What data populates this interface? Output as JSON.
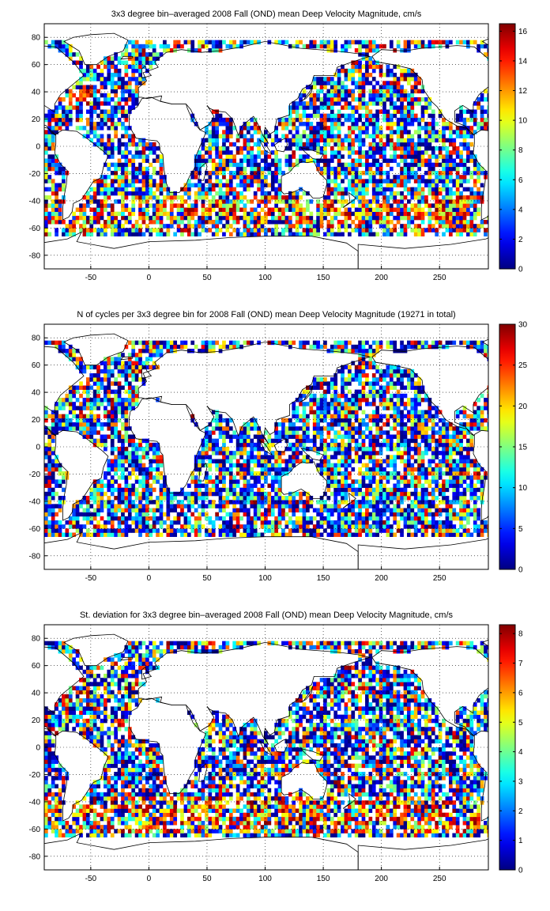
{
  "chart_data": [
    {
      "type": "heatmap",
      "title": "3x3 degree bin–averaged 2008 Fall (OND) mean Deep Velocity Magnitude, cm/s",
      "xlabel": "",
      "ylabel": "",
      "xlim": [
        -90,
        292
      ],
      "ylim": [
        -90,
        90
      ],
      "xticks": [
        "-50",
        "0",
        "50",
        "100",
        "150",
        "200",
        "250"
      ],
      "yticks": [
        "80",
        "60",
        "40",
        "20",
        "0",
        "-20",
        "-40",
        "-60",
        "-80"
      ],
      "colorbar": {
        "range": [
          0,
          16.5
        ],
        "ticks": [
          "0",
          "2",
          "4",
          "6",
          "8",
          "10",
          "12",
          "14",
          "16"
        ]
      },
      "grid": true,
      "colormap": "jet",
      "bin_size_deg": 3
    },
    {
      "type": "heatmap",
      "title": "N of cycles per 3x3 degree bin for 2008 Fall (OND) mean Deep Velocity Magnitude (19271 in total)",
      "xlabel": "",
      "ylabel": "",
      "xlim": [
        -90,
        292
      ],
      "ylim": [
        -90,
        90
      ],
      "xticks": [
        "-50",
        "0",
        "50",
        "100",
        "150",
        "200",
        "250"
      ],
      "yticks": [
        "80",
        "60",
        "40",
        "20",
        "0",
        "-20",
        "-40",
        "-60",
        "-80"
      ],
      "colorbar": {
        "range": [
          0,
          30
        ],
        "ticks": [
          "0",
          "5",
          "10",
          "15",
          "20",
          "25",
          "30"
        ]
      },
      "grid": true,
      "colormap": "jet",
      "bin_size_deg": 3
    },
    {
      "type": "heatmap",
      "title": "St. deviation for 3x3 degree bin–averaged 2008 Fall (OND) mean Deep Velocity Magnitude, cm/s",
      "xlabel": "",
      "ylabel": "",
      "xlim": [
        -90,
        292
      ],
      "ylim": [
        -90,
        90
      ],
      "xticks": [
        "-50",
        "0",
        "50",
        "100",
        "150",
        "200",
        "250"
      ],
      "yticks": [
        "80",
        "60",
        "40",
        "20",
        "0",
        "-20",
        "-40",
        "-60",
        "-80"
      ],
      "colorbar": {
        "range": [
          0,
          8.3
        ],
        "ticks": [
          "0",
          "1",
          "2",
          "3",
          "4",
          "5",
          "6",
          "7",
          "8"
        ]
      },
      "grid": true,
      "colormap": "jet",
      "bin_size_deg": 3
    }
  ]
}
